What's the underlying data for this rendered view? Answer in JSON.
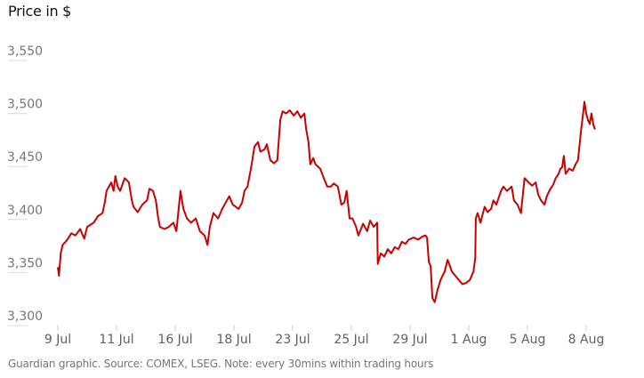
{
  "chart_data": {
    "type": "line",
    "title": "Price in $",
    "footer": "Guardian graphic. Source: COMEX, LSEG. Note: every 30mins within trading hours",
    "ylabel": "",
    "xlabel": "",
    "ylim": [
      3300,
      3550
    ],
    "y_ticks": [
      "3,550",
      "3,500",
      "3,450",
      "3,400",
      "3,350",
      "3,300"
    ],
    "y_tick_values": [
      3550,
      3500,
      3450,
      3400,
      3350,
      3300
    ],
    "x_ticks": [
      "9 Jul",
      "11 Jul",
      "16 Jul",
      "18 Jul",
      "23 Jul",
      "25 Jul",
      "29 Jul",
      "1 Aug",
      "5 Aug",
      "8 Aug"
    ],
    "grid": false,
    "line_color": "#c70000",
    "series": [
      {
        "x": [
          0,
          0.02,
          0.05,
          0.08,
          0.15,
          0.23,
          0.3,
          0.38,
          0.45,
          0.5,
          0.61,
          0.68,
          0.76,
          0.8,
          0.83,
          0.91,
          0.95,
          0.98,
          1.02,
          1.06,
          1.14,
          1.21,
          1.26,
          1.29,
          1.36,
          1.44,
          1.52,
          1.56,
          1.62,
          1.67,
          1.71,
          1.74,
          1.82,
          1.89,
          1.97,
          2.02,
          2.09,
          2.14,
          2.2,
          2.27,
          2.35,
          2.42,
          2.5,
          2.55,
          2.59,
          2.65,
          2.73,
          2.8,
          2.88,
          2.92,
          2.98,
          3.08,
          3.14,
          3.18,
          3.23,
          3.29,
          3.35,
          3.41,
          3.45,
          3.52,
          3.56,
          3.62,
          3.68,
          3.74,
          3.79,
          3.83,
          3.89,
          3.95,
          4.02,
          4.08,
          4.14,
          4.2,
          4.23,
          4.27,
          4.3,
          4.35,
          4.39,
          4.47,
          4.53,
          4.59,
          4.65,
          4.7,
          4.77,
          4.83,
          4.88,
          4.92,
          4.97,
          5.02,
          5.08,
          5.12,
          5.2,
          5.27,
          5.32,
          5.38,
          5.44,
          5.45,
          5.5,
          5.56,
          5.62,
          5.68,
          5.74,
          5.8,
          5.86,
          5.92,
          5.98,
          6.06,
          6.14,
          6.21,
          6.26,
          6.29,
          6.32,
          6.35,
          6.38,
          6.42,
          6.47,
          6.52,
          6.59,
          6.64,
          6.68,
          6.71,
          6.77,
          6.83,
          6.89,
          6.95,
          7.02,
          7.08,
          7.11,
          7.12,
          7.15,
          7.2,
          7.27,
          7.32,
          7.38,
          7.42,
          7.47,
          7.55,
          7.59,
          7.65,
          7.73,
          7.77,
          7.83,
          7.89,
          7.95,
          8.02,
          8.08,
          8.14,
          8.18,
          8.23,
          8.29,
          8.33,
          8.38,
          8.44,
          8.48,
          8.53,
          8.56,
          8.59,
          8.62,
          8.65,
          8.71,
          8.77,
          8.82,
          8.86,
          8.91,
          8.94,
          8.97,
          9.0,
          9.03,
          9.06,
          9.09,
          9.12,
          9.15
        ],
        "y": [
          3355,
          3347,
          3368,
          3376,
          3380,
          3387,
          3385,
          3391,
          3382,
          3393,
          3397,
          3403,
          3406,
          3416,
          3427,
          3435,
          3427,
          3441,
          3431,
          3427,
          3439,
          3435,
          3418,
          3412,
          3407,
          3414,
          3418,
          3429,
          3427,
          3418,
          3401,
          3393,
          3391,
          3393,
          3397,
          3389,
          3427,
          3410,
          3401,
          3397,
          3401,
          3389,
          3385,
          3376,
          3393,
          3406,
          3401,
          3410,
          3418,
          3422,
          3414,
          3410,
          3416,
          3427,
          3431,
          3448,
          3469,
          3473,
          3464,
          3466,
          3471,
          3456,
          3453,
          3456,
          3494,
          3502,
          3500,
          3503,
          3498,
          3502,
          3496,
          3500,
          3485,
          3473,
          3452,
          3458,
          3452,
          3448,
          3439,
          3431,
          3431,
          3434,
          3431,
          3414,
          3416,
          3427,
          3401,
          3401,
          3393,
          3385,
          3396,
          3389,
          3399,
          3393,
          3397,
          3358,
          3368,
          3365,
          3372,
          3368,
          3374,
          3372,
          3379,
          3377,
          3381,
          3383,
          3381,
          3384,
          3385,
          3383,
          3360,
          3356,
          3326,
          3322,
          3334,
          3343,
          3351,
          3362,
          3356,
          3351,
          3347,
          3343,
          3339,
          3340,
          3343,
          3351,
          3364,
          3401,
          3406,
          3397,
          3412,
          3407,
          3410,
          3418,
          3414,
          3427,
          3431,
          3427,
          3431,
          3418,
          3414,
          3406,
          3439,
          3435,
          3432,
          3435,
          3424,
          3418,
          3414,
          3422,
          3428,
          3433,
          3439,
          3443,
          3448,
          3449,
          3460,
          3443,
          3448,
          3446,
          3452,
          3456,
          3483,
          3496,
          3511,
          3500,
          3494,
          3490,
          3500,
          3490,
          3485
        ]
      }
    ]
  }
}
